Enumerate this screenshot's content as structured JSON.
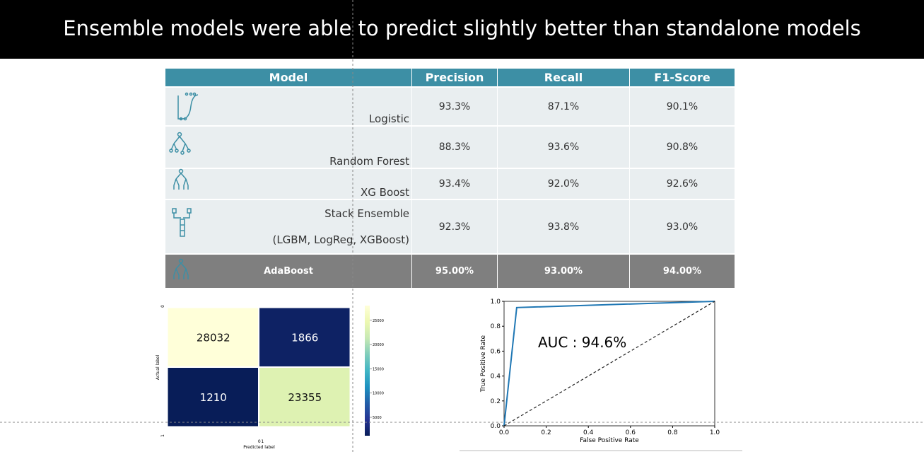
{
  "title": "Ensemble models were able to predict slightly better than standalone models",
  "table": {
    "header": [
      "Model",
      "Precision",
      "Recall",
      "F1-Score"
    ],
    "rows": [
      {
        "model": "Logistic",
        "precision": "93.3%",
        "recall": "87.1%",
        "f1": "90.1%"
      },
      {
        "model": "Random Forest",
        "precision": "88.3%",
        "recall": "93.6%",
        "f1": "90.8%"
      },
      {
        "model": "XG Boost",
        "precision": "93.4%",
        "recall": "92.0%",
        "f1": "92.6%"
      },
      {
        "model": "Stack Ensemble",
        "detail": "(LGBM, LogReg, XGBoost)",
        "precision": "92.3%",
        "recall": "93.8%",
        "f1": "93.0%"
      },
      {
        "model": "AdaBoost",
        "precision": "95.00%",
        "recall": "93.00%",
        "f1": "94.00%"
      }
    ]
  },
  "chart_data": [
    {
      "type": "heatmap",
      "x_categories": [
        "0",
        "1"
      ],
      "y_categories": [
        "0",
        "1"
      ],
      "values": [
        [
          28032,
          1866
        ],
        [
          1210,
          23355
        ]
      ],
      "xlabel": "Predicted label",
      "ylabel": "Actual label",
      "colors": [
        "#081d58",
        "#253494",
        "#225ea8",
        "#1d91c0",
        "#41b6c4",
        "#7fcdbb",
        "#c7e9b4",
        "#edf8b1",
        "#ffffd9"
      ],
      "zlim": [
        1210,
        28032
      ],
      "zticks": [
        5000,
        10000,
        15000,
        20000,
        25000
      ]
    },
    {
      "type": "line",
      "xlabel": "False Positive Rate",
      "ylabel": "True Positive Rate",
      "annotation": "AUC : 94.6%",
      "xlim": [
        0,
        1
      ],
      "ylim": [
        0,
        1
      ],
      "xticks": [
        {
          "value": 0,
          "label": "0.0"
        },
        {
          "value": 0.2,
          "label": "0.2"
        },
        {
          "value": 0.4,
          "label": "0.4"
        },
        {
          "value": 0.6,
          "label": "0.6"
        },
        {
          "value": 0.8,
          "label": "0.8"
        },
        {
          "value": 1,
          "label": "1.0"
        }
      ],
      "yticks": [
        {
          "value": 0,
          "label": "0.0"
        },
        {
          "value": 0.2,
          "label": "0.2"
        },
        {
          "value": 0.4,
          "label": "0.4"
        },
        {
          "value": 0.6,
          "label": "0.6"
        },
        {
          "value": 0.8,
          "label": "0.8"
        },
        {
          "value": 1,
          "label": "1.0"
        }
      ],
      "series": [
        {
          "color": "#1f77b4",
          "dash": false,
          "x": [
            0,
            0.06,
            1
          ],
          "values": [
            0,
            0.95,
            1
          ]
        },
        {
          "color": "#222222",
          "dash": true,
          "x": [
            0,
            1
          ],
          "values": [
            0,
            1
          ]
        }
      ]
    }
  ]
}
